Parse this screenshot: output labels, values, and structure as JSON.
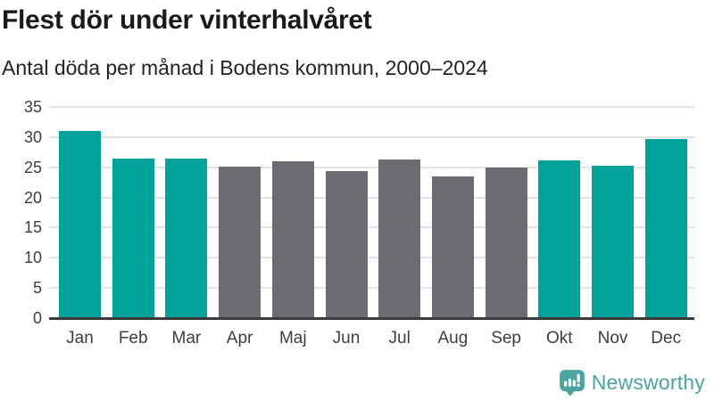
{
  "header": {
    "title": "Flest dör under vinterhalvåret",
    "subtitle": "Antal döda per månad i Bodens kommun, 2000–2024"
  },
  "chart_data": {
    "type": "bar",
    "title": "Flest dör under vinterhalvåret",
    "subtitle": "Antal döda per månad i Bodens kommun, 2000–2024",
    "categories": [
      "Jan",
      "Feb",
      "Mar",
      "Apr",
      "Maj",
      "Jun",
      "Jul",
      "Aug",
      "Sep",
      "Okt",
      "Nov",
      "Dec"
    ],
    "values": [
      31,
      26.5,
      26.5,
      25.1,
      26,
      24.4,
      26.3,
      23.5,
      25,
      26.2,
      25.3,
      29.7
    ],
    "bar_groups": [
      "winter",
      "winter",
      "winter",
      "summer",
      "summer",
      "summer",
      "summer",
      "summer",
      "summer",
      "winter",
      "winter",
      "winter"
    ],
    "group_colors": {
      "winter": "#00a29a",
      "summer": "#6c6c72"
    },
    "xlabel": "",
    "ylabel": "",
    "ylim": [
      0,
      35
    ],
    "yticks": [
      0,
      5,
      10,
      15,
      20,
      25,
      30,
      35
    ],
    "grid": true,
    "legend": false
  },
  "colors": {
    "grid": "#e3e3e3",
    "axis": "#3a3a3a",
    "brand": "#4aa5a0"
  },
  "branding": {
    "label": "Newsworthy"
  }
}
